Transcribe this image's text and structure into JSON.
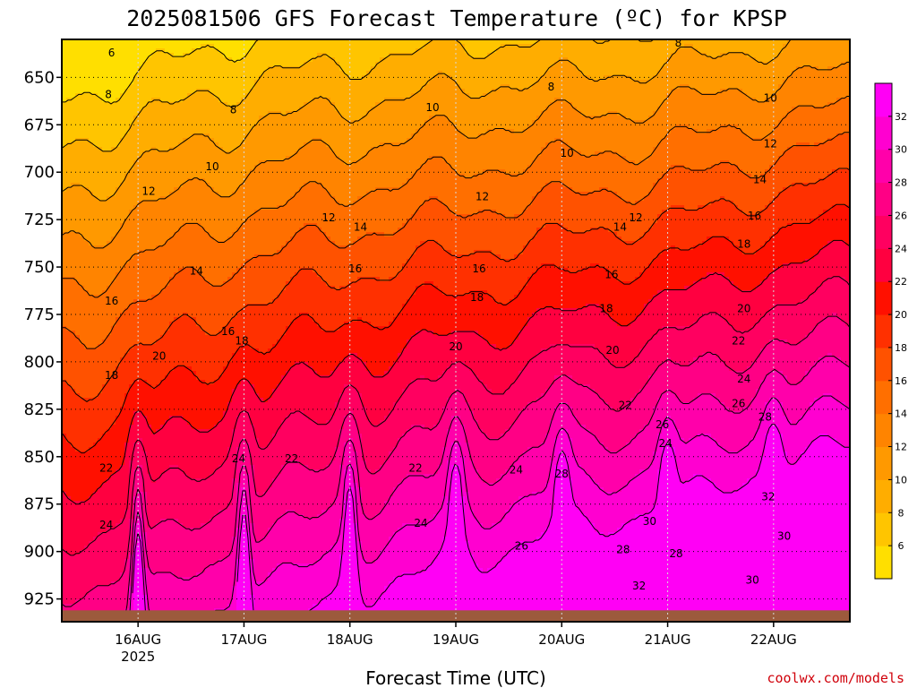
{
  "chart_data": {
    "type": "heatmap",
    "title": "2025081506 GFS Forecast Temperature (ºC) for KPSP",
    "xlabel": "Forecast Time (UTC)",
    "ylabel": "",
    "credit": "coolwx.com/models",
    "y_axis": {
      "ticks": [
        650,
        675,
        700,
        725,
        750,
        775,
        800,
        825,
        850,
        875,
        900,
        925
      ],
      "range": [
        630,
        937
      ],
      "inverted": true
    },
    "x_axis": {
      "ticks": [
        "16AUG",
        "17AUG",
        "18AUG",
        "19AUG",
        "20AUG",
        "21AUG",
        "22AUG"
      ],
      "sublabel": "2025",
      "range_days": [
        -0.72,
        6.72
      ]
    },
    "colorbar": {
      "levels": [
        4,
        6,
        8,
        10,
        12,
        14,
        16,
        18,
        20,
        22,
        24,
        26,
        28,
        30,
        32,
        34
      ],
      "tick_labels": [
        "6",
        "8",
        "10",
        "12",
        "14",
        "16",
        "18",
        "20",
        "22",
        "24",
        "26",
        "28",
        "30",
        "32"
      ],
      "colors": [
        "#ffdf00",
        "#ffc500",
        "#ffad00",
        "#ff9900",
        "#ff8400",
        "#ff6f00",
        "#ff5200",
        "#ff3000",
        "#ff1000",
        "#ff0040",
        "#ff0060",
        "#ff0085",
        "#ff00aa",
        "#ff00d0",
        "#ff00f5"
      ]
    },
    "grid": true,
    "surface_color": "#9c5a3c",
    "profile_model": {
      "base_temp_at_650": [
        5,
        8,
        9.5,
        10.5,
        12.5
      ],
      "lapse_per_25hPa": [
        2.0,
        2.3,
        2.6
      ],
      "diurnal_peak_utc_hour": 0
    },
    "contour_labels": [
      {
        "t": -0.25,
        "p": 637,
        "v": "6"
      },
      {
        "t": -0.28,
        "p": 659,
        "v": "8"
      },
      {
        "t": 0.9,
        "p": 667,
        "v": "8"
      },
      {
        "t": 2.78,
        "p": 666,
        "v": "10"
      },
      {
        "t": 3.9,
        "p": 655,
        "v": "8"
      },
      {
        "t": 4.05,
        "p": 690,
        "v": "10"
      },
      {
        "t": 5.1,
        "p": 632,
        "v": "8"
      },
      {
        "t": 5.97,
        "p": 661,
        "v": "10"
      },
      {
        "t": 0.7,
        "p": 697,
        "v": "10"
      },
      {
        "t": 0.1,
        "p": 710,
        "v": "12"
      },
      {
        "t": 3.25,
        "p": 713,
        "v": "12"
      },
      {
        "t": 4.7,
        "p": 724,
        "v": "12"
      },
      {
        "t": 5.97,
        "p": 685,
        "v": "12"
      },
      {
        "t": 1.8,
        "p": 724,
        "v": "12"
      },
      {
        "t": 2.1,
        "p": 729,
        "v": "14"
      },
      {
        "t": 4.55,
        "p": 729,
        "v": "14"
      },
      {
        "t": 5.87,
        "p": 704,
        "v": "14"
      },
      {
        "t": 5.82,
        "p": 723,
        "v": "16"
      },
      {
        "t": 0.55,
        "p": 752,
        "v": "14"
      },
      {
        "t": 2.05,
        "p": 751,
        "v": "16"
      },
      {
        "t": 3.22,
        "p": 751,
        "v": "16"
      },
      {
        "t": 4.47,
        "p": 754,
        "v": "16"
      },
      {
        "t": 5.72,
        "p": 738,
        "v": "18"
      },
      {
        "t": -0.25,
        "p": 768,
        "v": "16"
      },
      {
        "t": 0.85,
        "p": 784,
        "v": "16"
      },
      {
        "t": 0.98,
        "p": 789,
        "v": "18"
      },
      {
        "t": 3.2,
        "p": 766,
        "v": "18"
      },
      {
        "t": 4.42,
        "p": 772,
        "v": "18"
      },
      {
        "t": 5.72,
        "p": 772,
        "v": "20"
      },
      {
        "t": 0.2,
        "p": 797,
        "v": "20"
      },
      {
        "t": 3.0,
        "p": 792,
        "v": "20"
      },
      {
        "t": 4.48,
        "p": 794,
        "v": "20"
      },
      {
        "t": 5.67,
        "p": 789,
        "v": "22"
      },
      {
        "t": -0.25,
        "p": 807,
        "v": "18"
      },
      {
        "t": 4.6,
        "p": 823,
        "v": "22"
      },
      {
        "t": 5.72,
        "p": 809,
        "v": "24"
      },
      {
        "t": -0.3,
        "p": 856,
        "v": "22"
      },
      {
        "t": 0.95,
        "p": 851,
        "v": "24"
      },
      {
        "t": 1.45,
        "p": 851,
        "v": "22"
      },
      {
        "t": 2.62,
        "p": 856,
        "v": "22"
      },
      {
        "t": 3.57,
        "p": 857,
        "v": "24"
      },
      {
        "t": 4.98,
        "p": 843,
        "v": "24"
      },
      {
        "t": 4.0,
        "p": 859,
        "v": "28"
      },
      {
        "t": 4.95,
        "p": 833,
        "v": "26"
      },
      {
        "t": 5.67,
        "p": 822,
        "v": "26"
      },
      {
        "t": 5.92,
        "p": 829,
        "v": "28"
      },
      {
        "t": -0.3,
        "p": 886,
        "v": "24"
      },
      {
        "t": 2.67,
        "p": 885,
        "v": "24"
      },
      {
        "t": 3.62,
        "p": 897,
        "v": "26"
      },
      {
        "t": 4.58,
        "p": 899,
        "v": "28"
      },
      {
        "t": 4.83,
        "p": 884,
        "v": "30"
      },
      {
        "t": 5.08,
        "p": 901,
        "v": "28"
      },
      {
        "t": 5.95,
        "p": 871,
        "v": "32"
      },
      {
        "t": 6.1,
        "p": 892,
        "v": "30"
      },
      {
        "t": 4.73,
        "p": 918,
        "v": "32"
      },
      {
        "t": 5.8,
        "p": 915,
        "v": "30"
      }
    ]
  }
}
